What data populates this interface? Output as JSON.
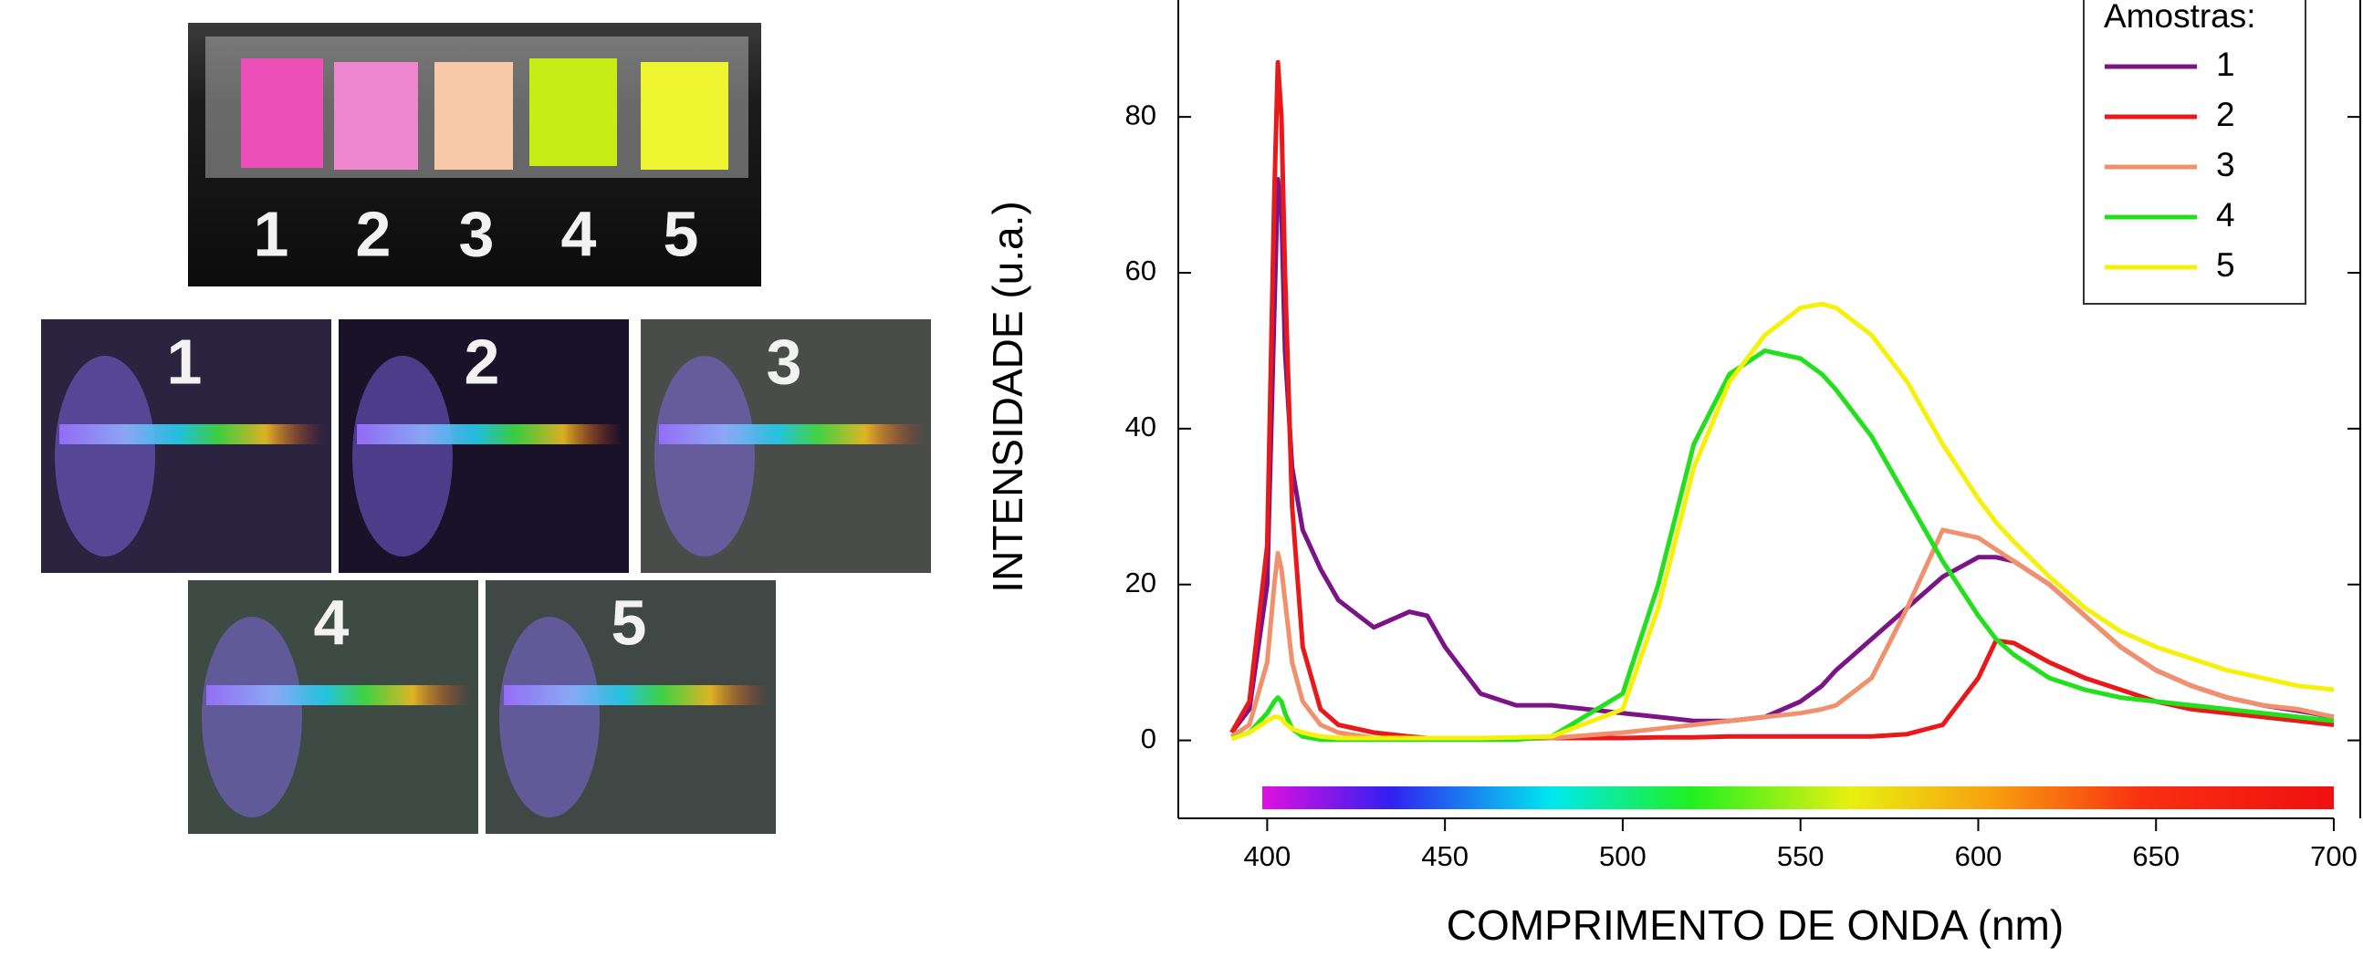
{
  "photos": {
    "strip_labels": [
      "1",
      "2",
      "3",
      "4",
      "5"
    ],
    "spectra_labels": [
      "1",
      "2",
      "3",
      "4",
      "5"
    ]
  },
  "chart_data": {
    "type": "line",
    "y_label": "INTENSIDADE (u.a.)",
    "x_label": "COMPRIMENTO DE ONDA (nm)",
    "legend_title": "Amostras:",
    "legend": "upper right",
    "grid": false,
    "xlim": [
      375,
      700
    ],
    "ylim": [
      -10,
      95
    ],
    "xticks": [
      400,
      450,
      500,
      550,
      600,
      650,
      700
    ],
    "yticks": [
      0,
      20,
      40,
      60,
      80
    ],
    "x": [
      390,
      395,
      400,
      402,
      403,
      404,
      405,
      407,
      410,
      415,
      420,
      430,
      440,
      445,
      450,
      460,
      470,
      480,
      500,
      510,
      520,
      530,
      540,
      550,
      556,
      560,
      570,
      580,
      590,
      600,
      605,
      610,
      620,
      630,
      640,
      650,
      660,
      670,
      680,
      690,
      700
    ],
    "series": [
      {
        "name": "1",
        "color": "#7b1586",
        "values": [
          1,
          4,
          20,
          55,
          72,
          68,
          50,
          35,
          27,
          22,
          18,
          14.5,
          16.5,
          16,
          12,
          6,
          4.5,
          4.5,
          3.5,
          3,
          2.5,
          2.5,
          3,
          5,
          7,
          9,
          13,
          17,
          21,
          23.5,
          23.5,
          23,
          20,
          16,
          12,
          9,
          7,
          5.5,
          4.5,
          3.8,
          3
        ]
      },
      {
        "name": "2",
        "color": "#e8191b",
        "values": [
          1,
          5,
          25,
          70,
          87,
          80,
          60,
          30,
          12,
          4,
          2,
          1,
          0.5,
          0.3,
          0.2,
          0.2,
          0.2,
          0.3,
          0.3,
          0.4,
          0.4,
          0.5,
          0.5,
          0.5,
          0.5,
          0.5,
          0.5,
          0.8,
          2,
          8,
          12.8,
          12.5,
          10,
          8,
          6.5,
          5,
          4,
          3.5,
          3,
          2.5,
          2
        ]
      },
      {
        "name": "3",
        "color": "#f0906c",
        "values": [
          0.5,
          2,
          10,
          20,
          24,
          22,
          18,
          10,
          5,
          2,
          1,
          0.3,
          0.2,
          0.2,
          0.2,
          0.2,
          0.2,
          0.3,
          1,
          1.5,
          2,
          2.5,
          3,
          3.5,
          4,
          4.5,
          8,
          17,
          27,
          26,
          24.5,
          23,
          20,
          16,
          12,
          9,
          7,
          5.5,
          4.5,
          4,
          3
        ]
      },
      {
        "name": "4",
        "color": "#22e01c",
        "values": [
          0.3,
          1,
          3.5,
          5,
          5.5,
          5,
          3.5,
          1.5,
          0.5,
          0.1,
          0.1,
          0.1,
          0.1,
          0.1,
          0.1,
          0.1,
          0.1,
          0.5,
          6,
          20,
          38,
          47,
          50,
          49,
          47,
          45,
          39,
          31,
          23,
          16,
          13,
          11,
          8,
          6.5,
          5.5,
          5,
          4.5,
          4,
          3.5,
          3,
          2.5
        ]
      },
      {
        "name": "5",
        "color": "#f5f00c",
        "values": [
          0.2,
          1,
          2.5,
          3,
          3,
          2.8,
          2.2,
          1.5,
          1,
          0.5,
          0.3,
          0.3,
          0.3,
          0.3,
          0.3,
          0.3,
          0.4,
          0.5,
          4,
          17,
          35,
          46,
          52,
          55.5,
          56,
          55.5,
          52,
          46,
          38,
          31,
          28,
          25.5,
          21,
          17,
          14,
          12,
          10.5,
          9,
          8,
          7,
          6.5
        ]
      }
    ]
  }
}
